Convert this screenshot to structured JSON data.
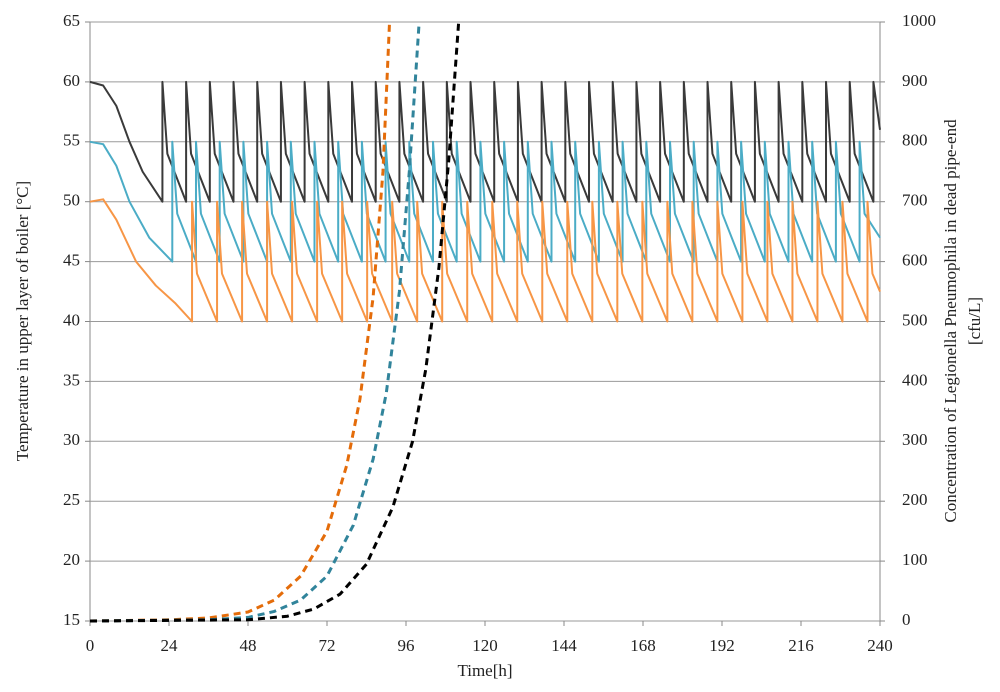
{
  "chart_data": {
    "type": "line",
    "xlabel": "Time[h]",
    "ylabel": "Temperature in upper layer of boiler [°C]",
    "y2label": [
      "Concentration of Legionella Pneumophila in dead pipe-end",
      "[cfu/L]"
    ],
    "xlim": [
      0,
      240
    ],
    "xticks": [
      0,
      24,
      48,
      72,
      96,
      120,
      144,
      168,
      192,
      216,
      240
    ],
    "ylim": [
      15,
      65
    ],
    "yticks": [
      15,
      20,
      25,
      30,
      35,
      40,
      45,
      50,
      55,
      60,
      65
    ],
    "y2lim": [
      0,
      1000
    ],
    "y2ticks": [
      0,
      100,
      200,
      300,
      400,
      500,
      600,
      700,
      800,
      900,
      1000
    ],
    "grid": true,
    "series": [
      {
        "color": "#3a3a3a",
        "axis": "y",
        "x": [
          0,
          4,
          8,
          12,
          16,
          22,
          22,
          23.5,
          29.2,
          29.2,
          30.7,
          36.4,
          36.4,
          37.9,
          43.6,
          43.6,
          45.1,
          50.8,
          50.8,
          52.3,
          58,
          58,
          59.5,
          65.2,
          65.2,
          66.7,
          72.4,
          72.4,
          73.9,
          79.6,
          79.6,
          81.1,
          86.8,
          86.8,
          88.3,
          94,
          94,
          95.5,
          101.2,
          101.2,
          102.7,
          108.4,
          108.4,
          109.9,
          115.6,
          115.6,
          117.1,
          122.8,
          122.8,
          124.3,
          130,
          130,
          131.5,
          137.2,
          137.2,
          138.7,
          144.4,
          144.4,
          145.9,
          151.6,
          151.6,
          153.1,
          158.8,
          158.8,
          160.3,
          166,
          166,
          167.5,
          173.2,
          173.2,
          174.7,
          180.4,
          180.4,
          181.9,
          187.6,
          187.6,
          189.1,
          194.8,
          194.8,
          196.3,
          202,
          202,
          203.5,
          209.2,
          209.2,
          210.7,
          216.4,
          216.4,
          217.9,
          223.6,
          223.6,
          225.1,
          230.8,
          230.8,
          232.3,
          238,
          238,
          240
        ],
        "values": [
          60,
          59.7,
          58,
          55,
          52.5,
          50,
          60,
          54,
          50,
          60,
          54,
          50,
          60,
          54,
          50,
          60,
          54,
          50,
          60,
          54,
          50,
          60,
          54,
          50,
          60,
          54,
          50,
          60,
          54,
          50,
          60,
          54,
          50,
          60,
          54,
          50,
          60,
          54,
          50,
          60,
          54,
          50,
          60,
          54,
          50,
          60,
          54,
          50,
          60,
          54,
          50,
          60,
          54,
          50,
          60,
          54,
          50,
          60,
          54,
          50,
          60,
          54,
          50,
          60,
          54,
          50,
          60,
          54,
          50,
          60,
          54,
          50,
          60,
          54,
          50,
          60,
          54,
          50,
          60,
          54,
          50,
          60,
          54,
          50,
          60,
          54,
          50,
          60,
          54,
          50,
          60,
          54,
          50,
          60,
          54,
          50,
          60,
          56
        ]
      },
      {
        "color": "#4bacc6",
        "axis": "y",
        "x": [
          0,
          4,
          8,
          12,
          18,
          25,
          25,
          26.5,
          32.2,
          32.2,
          33.7,
          39.4,
          39.4,
          40.9,
          46.6,
          46.6,
          48.1,
          53.8,
          53.8,
          55.3,
          61,
          61,
          62.5,
          68.2,
          68.2,
          69.7,
          75.4,
          75.4,
          76.9,
          82.6,
          82.6,
          84.1,
          89.8,
          89.8,
          91.3,
          97,
          97,
          98.5,
          104.2,
          104.2,
          105.7,
          111.4,
          111.4,
          112.9,
          118.6,
          118.6,
          120.1,
          125.8,
          125.8,
          127.3,
          133,
          133,
          134.5,
          140.2,
          140.2,
          141.7,
          147.4,
          147.4,
          148.9,
          154.6,
          154.6,
          156.1,
          161.8,
          161.8,
          163.3,
          169,
          169,
          170.5,
          176.2,
          176.2,
          177.7,
          183.4,
          183.4,
          184.9,
          190.6,
          190.6,
          192.1,
          197.8,
          197.8,
          199.3,
          205,
          205,
          206.5,
          212.2,
          212.2,
          213.7,
          219.4,
          219.4,
          220.9,
          226.6,
          226.6,
          228.1,
          233.8,
          233.8,
          235.3,
          240
        ],
        "values": [
          55,
          54.8,
          53,
          50,
          47,
          45,
          55,
          49,
          45,
          55,
          49,
          45,
          55,
          49,
          45,
          55,
          49,
          45,
          55,
          49,
          45,
          55,
          49,
          45,
          55,
          49,
          45,
          55,
          49,
          45,
          55,
          49,
          45,
          55,
          49,
          45,
          55,
          49,
          45,
          55,
          49,
          45,
          55,
          49,
          45,
          55,
          49,
          45,
          55,
          49,
          45,
          55,
          49,
          45,
          55,
          49,
          45,
          55,
          49,
          45,
          55,
          49,
          45,
          55,
          49,
          45,
          55,
          49,
          45,
          55,
          49,
          45,
          55,
          49,
          45,
          55,
          49,
          45,
          55,
          49,
          45,
          55,
          49,
          45,
          55,
          49,
          45,
          55,
          49,
          45,
          55,
          49,
          45,
          55,
          49,
          47
        ]
      },
      {
        "color": "#f79646",
        "axis": "y",
        "x": [
          0,
          4,
          8,
          14,
          20,
          26,
          31,
          31,
          32.5,
          38.6,
          38.6,
          40.1,
          46.2,
          46.2,
          47.7,
          53.8,
          53.8,
          55.3,
          61.4,
          61.4,
          62.9,
          69,
          69,
          70.5,
          76.6,
          76.6,
          78.1,
          84.2,
          84.2,
          85.7,
          91.8,
          91.8,
          93.3,
          99.4,
          99.4,
          100.9,
          107,
          107,
          108.5,
          114.6,
          114.6,
          116.1,
          122.2,
          122.2,
          123.7,
          129.8,
          129.8,
          131.3,
          137.4,
          137.4,
          138.9,
          145,
          145,
          146.5,
          152.6,
          152.6,
          154.1,
          160.2,
          160.2,
          161.7,
          167.8,
          167.8,
          169.3,
          175.4,
          175.4,
          176.9,
          183,
          183,
          184.5,
          190.6,
          190.6,
          192.1,
          198.2,
          198.2,
          199.7,
          205.8,
          205.8,
          207.3,
          213.4,
          213.4,
          214.9,
          221,
          221,
          222.5,
          228.6,
          228.6,
          230.1,
          236.2,
          236.2,
          237.7,
          240
        ],
        "values": [
          50,
          50.2,
          48.5,
          45,
          43,
          41.5,
          40,
          50,
          44,
          40,
          50,
          44,
          40,
          50,
          44,
          40,
          50,
          44,
          40,
          50,
          44,
          40,
          50,
          44,
          40,
          50,
          44,
          40,
          50,
          44,
          40,
          50,
          44,
          40,
          50,
          44,
          40,
          50,
          44,
          40,
          50,
          44,
          40,
          50,
          44,
          40,
          50,
          44,
          40,
          50,
          44,
          40,
          50,
          44,
          40,
          50,
          44,
          40,
          50,
          44,
          40,
          50,
          44,
          40,
          50,
          44,
          40,
          50,
          44,
          40,
          50,
          44,
          40,
          50,
          44,
          40,
          50,
          44,
          40,
          50,
          44,
          40,
          50,
          44,
          40,
          50,
          44,
          40,
          50,
          44,
          42.5
        ]
      },
      {
        "color": "#e46c0a",
        "axis": "y2",
        "dashed": true,
        "x": [
          0,
          24,
          36,
          48,
          56,
          64,
          72,
          78,
          82,
          86,
          89,
          91
        ],
        "values": [
          0,
          2,
          5,
          15,
          35,
          75,
          150,
          260,
          370,
          540,
          750,
          1000
        ]
      },
      {
        "color": "#31849b",
        "axis": "y2",
        "dashed": true,
        "x": [
          0,
          36,
          48,
          56,
          64,
          72,
          80,
          86,
          90,
          94,
          97,
          100
        ],
        "values": [
          0,
          2,
          6,
          16,
          35,
          75,
          160,
          270,
          380,
          550,
          750,
          1000
        ]
      },
      {
        "color": "#000000",
        "axis": "y2",
        "dashed": true,
        "x": [
          0,
          48,
          60,
          68,
          76,
          84,
          92,
          98,
          102,
          106,
          109,
          112
        ],
        "values": [
          0,
          2,
          8,
          20,
          45,
          95,
          190,
          300,
          420,
          590,
          770,
          1000
        ]
      }
    ]
  }
}
